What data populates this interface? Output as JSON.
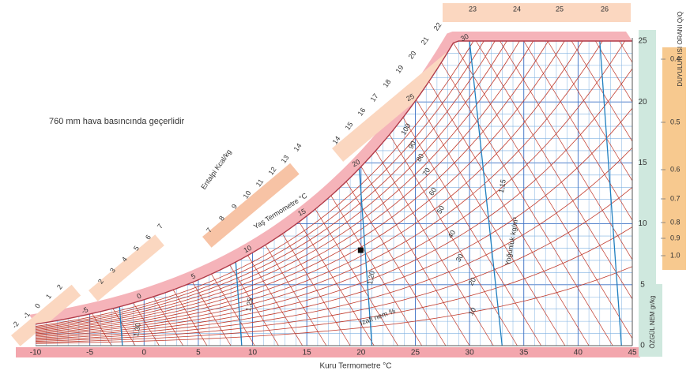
{
  "note": "760 mm hava basıncında geçerlidir",
  "colors": {
    "grid_red": "#c0392b",
    "grid_blue": "#3a6fc4",
    "grid_blue_light": "#7fb0e0",
    "density_line": "#1f7fbf",
    "band_pink": "#f3a6ad",
    "band_salmon": "#f7c3a5",
    "band_peach": "#fbd7c0",
    "band_green": "#cfe8de",
    "band_orange": "#f7c98f",
    "chart_fill": "#ffffff"
  },
  "chart_data": {
    "type": "psychrometric",
    "x_axis": {
      "label": "Kuru Termometre °C",
      "ticks": [
        -10,
        -5,
        0,
        5,
        10,
        15,
        20,
        25,
        30,
        35,
        40,
        45
      ],
      "range": [
        -10,
        45
      ]
    },
    "y_axis": {
      "label": "ÖZGÜL NEM gr/kg",
      "ticks": [
        0,
        5,
        10,
        15,
        20,
        25
      ],
      "range": [
        0,
        25
      ]
    },
    "sensible_heat_ratio_axis": {
      "label": "DUYULUR ISI ORANI Q/Q",
      "ticks": [
        "0.4",
        "0.5",
        "0.6",
        "0.7",
        "0.8",
        "0.9",
        "1.0"
      ]
    },
    "enthalpy_scale": {
      "label": "Entalpi Kcal/kg",
      "ticks_a": [
        "-2",
        "-1",
        "0",
        "1",
        "2"
      ],
      "ticks_b": [
        "2",
        "3",
        "4",
        "5",
        "6",
        "7"
      ],
      "ticks_c": [
        "7",
        "8",
        "9",
        "10",
        "11",
        "12",
        "13",
        "14"
      ],
      "ticks_d": [
        "14",
        "15",
        "16",
        "17",
        "18",
        "19",
        "20",
        "21",
        "22"
      ],
      "ticks_e": [
        "23",
        "24",
        "25",
        "26"
      ]
    },
    "wet_bulb": {
      "label": "Yaş Termometre °C",
      "ticks": [
        "-5",
        "0",
        "5",
        "10",
        "15",
        "20",
        "25",
        "30"
      ]
    },
    "relative_humidity": {
      "label": "İzafi nem %",
      "ticks": [
        "10",
        "20",
        "30",
        "40",
        "50",
        "60",
        "70",
        "80",
        "90",
        "100"
      ]
    },
    "specific_volume": {
      "label": "Yoğunluk kg/m³",
      "ticks": [
        "1,30",
        "1,25",
        "1,20",
        "1,15"
      ]
    },
    "marked_point": {
      "dry_bulb": 20,
      "specific_humidity": 7.8
    }
  }
}
